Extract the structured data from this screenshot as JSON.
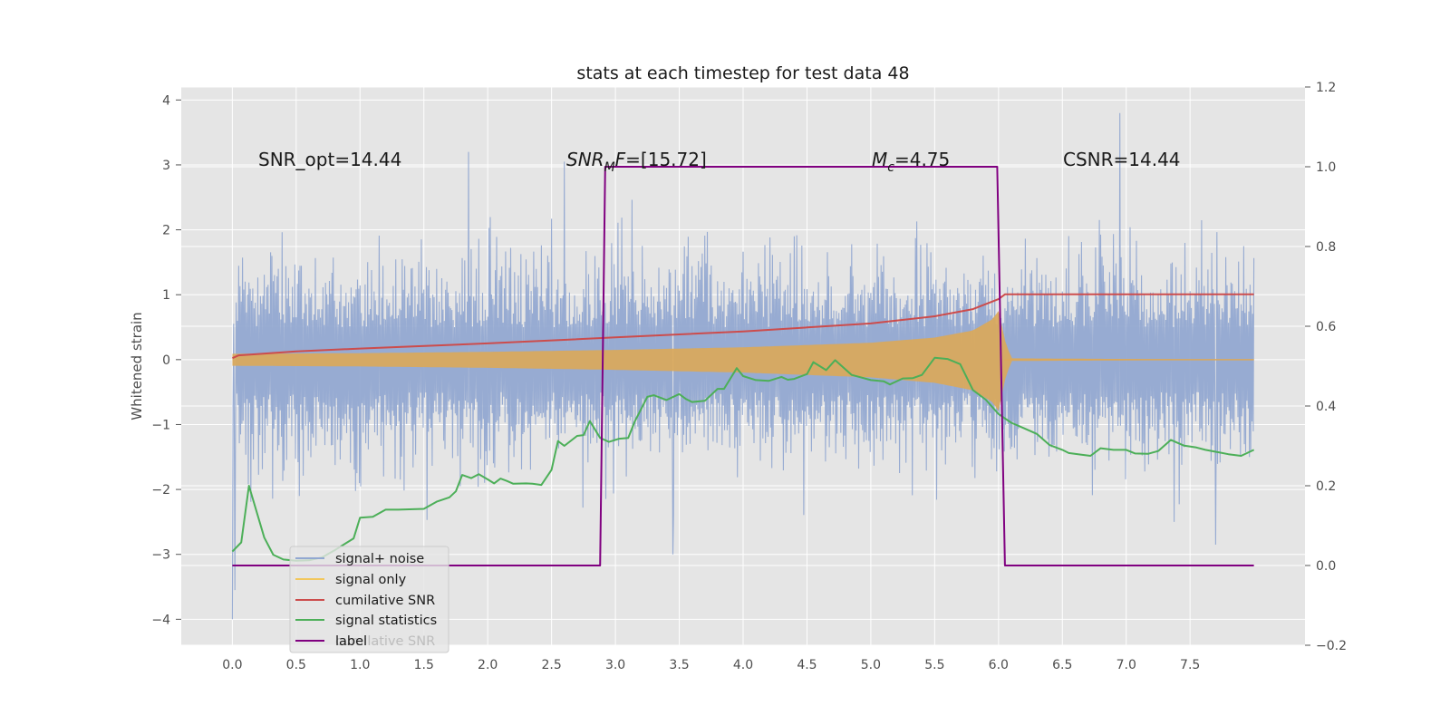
{
  "chart_data": {
    "type": "line",
    "title": "stats at each timestep for test data 48",
    "ylabel": "Whitened strain",
    "xlabel": "",
    "xlim": [
      -0.4,
      8.4
    ],
    "ylim": [
      -4.4,
      4.2
    ],
    "y2lim": [
      -0.2,
      1.2
    ],
    "x_ticks": [
      "0.0",
      "0.5",
      "1.0",
      "1.5",
      "2.0",
      "2.5",
      "3.0",
      "3.5",
      "4.0",
      "4.5",
      "5.0",
      "5.5",
      "6.0",
      "6.5",
      "7.0",
      "7.5"
    ],
    "y_ticks": [
      "4",
      "3",
      "2",
      "1",
      "0",
      "−1",
      "−2",
      "−3",
      "−4"
    ],
    "y2_ticks": [
      "1.2",
      "1.0",
      "0.8",
      "0.6",
      "0.4",
      "0.2",
      "0.0",
      "−0.2"
    ],
    "annotations": [
      "SNR_opt=14.44",
      "SNR_MF=[15.72]",
      "M_c=4.75",
      "CSNR=14.44"
    ],
    "legend": {
      "location": "lower-left",
      "entries": [
        "signal+ noise",
        "signal only",
        "cumilative SNR",
        "signal statistics",
        "label"
      ],
      "hidden_behind_text": "cumilative SNR"
    },
    "series": [
      {
        "name": "signal+ noise",
        "color": "#92a8d1",
        "description": "noisy whitened strain, amplitude mostly within [-2.6, 3.2]",
        "envelope": {
          "x": [
            0.0,
            8.0
          ],
          "low": -2.4,
          "high": 2.4
        },
        "outliers": [
          [
            0.0,
            -4.0
          ],
          [
            0.02,
            -3.55
          ],
          [
            1.85,
            3.2
          ],
          [
            2.6,
            3.05
          ],
          [
            6.95,
            3.8
          ],
          [
            7.7,
            -2.85
          ],
          [
            3.45,
            -3.0
          ]
        ]
      },
      {
        "name": "signal only",
        "color": "#daa85a",
        "description": "chirp envelope growing until merger at 6.0",
        "x": [
          0.0,
          1.0,
          2.0,
          3.0,
          4.0,
          5.0,
          5.5,
          5.8,
          5.95,
          6.0,
          6.05,
          6.1,
          8.0
        ],
        "amplitude": [
          0.09,
          0.1,
          0.12,
          0.15,
          0.19,
          0.26,
          0.34,
          0.45,
          0.62,
          0.75,
          0.3,
          0.02,
          0.0
        ]
      },
      {
        "name": "cumilative SNR",
        "color": "#cc4c4c",
        "axis": "right",
        "x": [
          0.0,
          0.05,
          0.5,
          1.0,
          2.0,
          3.0,
          4.0,
          5.0,
          5.5,
          5.8,
          6.0,
          6.05,
          8.0
        ],
        "y": [
          0.52,
          0.527,
          0.537,
          0.544,
          0.557,
          0.572,
          0.587,
          0.607,
          0.625,
          0.643,
          0.668,
          0.68,
          0.68
        ]
      },
      {
        "name": "signal statistics",
        "color": "#4caf58",
        "axis": "right",
        "x": [
          0.0,
          0.07,
          0.13,
          0.25,
          0.32,
          0.4,
          0.5,
          0.6,
          0.7,
          0.8,
          0.95,
          1.0,
          1.1,
          1.2,
          1.3,
          1.5,
          1.6,
          1.7,
          1.75,
          1.8,
          1.87,
          1.93,
          2.0,
          2.05,
          2.1,
          2.15,
          2.2,
          2.3,
          2.35,
          2.42,
          2.5,
          2.55,
          2.6,
          2.7,
          2.75,
          2.8,
          2.88,
          2.95,
          3.03,
          3.1,
          3.15,
          3.25,
          3.3,
          3.4,
          3.5,
          3.55,
          3.6,
          3.7,
          3.8,
          3.85,
          3.95,
          4.0,
          4.1,
          4.2,
          4.3,
          4.35,
          4.4,
          4.5,
          4.55,
          4.65,
          4.72,
          4.85,
          5.0,
          5.1,
          5.15,
          5.25,
          5.33,
          5.4,
          5.5,
          5.6,
          5.7,
          5.8,
          5.9,
          6.0,
          6.1,
          6.2,
          6.3,
          6.4,
          6.5,
          6.55,
          6.65,
          6.72,
          6.8,
          6.9,
          7.0,
          7.07,
          7.17,
          7.25,
          7.35,
          7.45,
          7.55,
          7.62,
          7.72,
          7.8,
          7.9,
          8.0
        ],
        "y": [
          0.035,
          0.058,
          0.2,
          0.07,
          0.027,
          0.015,
          0.012,
          0.013,
          0.02,
          0.038,
          0.068,
          0.12,
          0.122,
          0.14,
          0.14,
          0.142,
          0.16,
          0.171,
          0.186,
          0.227,
          0.219,
          0.229,
          0.216,
          0.206,
          0.218,
          0.212,
          0.205,
          0.206,
          0.205,
          0.202,
          0.24,
          0.312,
          0.3,
          0.325,
          0.327,
          0.362,
          0.32,
          0.31,
          0.318,
          0.32,
          0.36,
          0.423,
          0.427,
          0.415,
          0.43,
          0.418,
          0.41,
          0.413,
          0.443,
          0.443,
          0.495,
          0.475,
          0.465,
          0.463,
          0.473,
          0.466,
          0.468,
          0.48,
          0.51,
          0.49,
          0.515,
          0.478,
          0.465,
          0.462,
          0.454,
          0.469,
          0.47,
          0.478,
          0.521,
          0.518,
          0.505,
          0.44,
          0.416,
          0.38,
          0.358,
          0.344,
          0.33,
          0.302,
          0.29,
          0.282,
          0.278,
          0.275,
          0.294,
          0.29,
          0.29,
          0.281,
          0.28,
          0.287,
          0.315,
          0.301,
          0.296,
          0.29,
          0.284,
          0.279,
          0.275,
          0.29
        ]
      },
      {
        "name": "label",
        "color": "#800080",
        "axis": "right",
        "x": [
          0.0,
          2.88,
          2.92,
          5.99,
          6.05,
          8.0
        ],
        "y": [
          0.0,
          0.0,
          1.0,
          1.0,
          0.0,
          0.0
        ]
      }
    ]
  }
}
